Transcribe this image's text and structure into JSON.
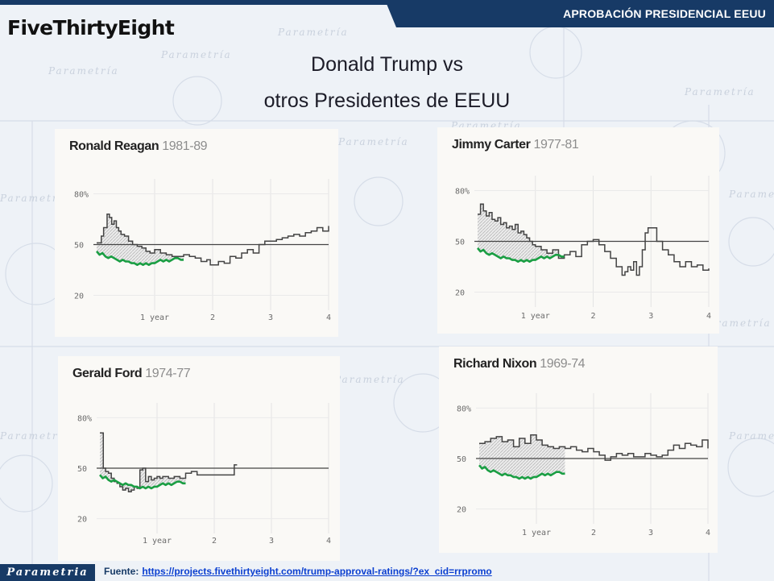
{
  "header": {
    "logo": "FiveThirtyEight",
    "section_title": "APROBACIÓN PRESIDENCIAL EEUU",
    "title_line1": "Donald Trump vs",
    "title_line2": "otros Presidentes de EEUU",
    "watermark": "Parametria"
  },
  "footer": {
    "brand": "Parametria",
    "source_label": "Fuente:",
    "source_url": "https://projects.fivethirtyeight.com/trump-approval-ratings/?ex_cid=rrpromo"
  },
  "colors": {
    "navy": "#173a66",
    "president_line": "#444444",
    "trump_line": "#1a9e43",
    "gap_fill": "#d6d6d6"
  },
  "chart_data": [
    {
      "type": "line",
      "president": "Ronald Reagan",
      "years": "1981-89",
      "ylim": [
        15,
        85
      ],
      "xlim": [
        0,
        4
      ],
      "yticks": [
        "80%",
        "50",
        "20"
      ],
      "ytick_values": [
        80,
        50,
        20
      ],
      "xticks": [
        "1 year",
        "2",
        "3",
        "4"
      ],
      "xtick_values": [
        1,
        2,
        3,
        4
      ],
      "reference": 50,
      "series": [
        {
          "x": [
            0,
            0.08,
            0.12,
            0.18,
            0.22,
            0.26,
            0.3,
            0.34,
            0.38,
            0.42,
            0.48,
            0.55,
            0.62,
            0.7,
            0.78,
            0.85,
            0.92,
            1.0,
            1.1,
            1.2,
            1.3,
            1.4,
            1.5,
            1.6,
            1.7,
            1.8,
            1.9,
            1.96,
            2.02,
            2.1,
            2.2,
            2.3,
            2.4,
            2.5,
            2.6,
            2.7,
            2.8,
            2.9,
            3.0,
            3.1,
            3.2,
            3.3,
            3.4,
            3.5,
            3.6,
            3.7,
            3.8,
            3.9,
            4.0
          ],
          "y": [
            51,
            55,
            60,
            68,
            66,
            62,
            64,
            60,
            58,
            56,
            55,
            52,
            50,
            49,
            48,
            46,
            45,
            47,
            45,
            44,
            43,
            43,
            44,
            43,
            42,
            40,
            41,
            38,
            38,
            40,
            39,
            43,
            42,
            45,
            47,
            45,
            50,
            52,
            52,
            53,
            54,
            55,
            56,
            55,
            57,
            58,
            60,
            58,
            61
          ]
        },
        {
          "x": [
            0,
            0.05,
            0.1,
            0.15,
            0.2,
            0.25,
            0.3,
            0.35,
            0.4,
            0.45,
            0.5,
            0.55,
            0.6,
            0.65,
            0.7,
            0.75,
            0.8,
            0.85,
            0.9,
            0.95,
            1.0,
            1.05,
            1.1,
            1.15,
            1.2,
            1.25,
            1.3,
            1.35,
            1.4,
            1.45,
            1.5
          ],
          "y": [
            46,
            44,
            45,
            43,
            42,
            43,
            42,
            41,
            40,
            41,
            40,
            40,
            39,
            39,
            38,
            39,
            38,
            39,
            38,
            39,
            39,
            40,
            41,
            40,
            41,
            40,
            41,
            42,
            42,
            41,
            41
          ]
        }
      ]
    },
    {
      "type": "line",
      "president": "Jimmy Carter",
      "years": "1977-81",
      "ylim": [
        15,
        85
      ],
      "xlim": [
        0,
        4
      ],
      "yticks": [
        "80%",
        "50",
        "20"
      ],
      "ytick_values": [
        80,
        50,
        20
      ],
      "xticks": [
        "1 year",
        "2",
        "3",
        "4"
      ],
      "xtick_values": [
        1,
        2,
        3,
        4
      ],
      "reference": 50,
      "series": [
        {
          "x": [
            0,
            0.05,
            0.1,
            0.15,
            0.2,
            0.25,
            0.3,
            0.35,
            0.4,
            0.45,
            0.5,
            0.55,
            0.6,
            0.65,
            0.7,
            0.75,
            0.8,
            0.85,
            0.9,
            0.95,
            1.0,
            1.1,
            1.2,
            1.3,
            1.4,
            1.5,
            1.6,
            1.7,
            1.8,
            1.9,
            2.0,
            2.1,
            2.2,
            2.3,
            2.4,
            2.5,
            2.55,
            2.6,
            2.65,
            2.7,
            2.75,
            2.8,
            2.85,
            2.9,
            2.95,
            3.0,
            3.1,
            3.2,
            3.3,
            3.4,
            3.5,
            3.6,
            3.7,
            3.8,
            3.9,
            4.0
          ],
          "y": [
            66,
            72,
            68,
            65,
            67,
            63,
            62,
            64,
            60,
            61,
            58,
            59,
            57,
            60,
            55,
            56,
            54,
            52,
            50,
            48,
            47,
            45,
            43,
            45,
            40,
            42,
            44,
            41,
            48,
            50,
            51,
            48,
            44,
            40,
            35,
            30,
            32,
            35,
            33,
            38,
            30,
            35,
            45,
            55,
            58,
            58,
            50,
            45,
            42,
            38,
            35,
            38,
            35,
            36,
            33,
            34
          ]
        },
        {
          "x": [
            0,
            0.05,
            0.1,
            0.15,
            0.2,
            0.25,
            0.3,
            0.35,
            0.4,
            0.45,
            0.5,
            0.55,
            0.6,
            0.65,
            0.7,
            0.75,
            0.8,
            0.85,
            0.9,
            0.95,
            1.0,
            1.05,
            1.1,
            1.15,
            1.2,
            1.25,
            1.3,
            1.35,
            1.4,
            1.45,
            1.5
          ],
          "y": [
            46,
            44,
            45,
            43,
            42,
            43,
            42,
            41,
            40,
            41,
            40,
            40,
            39,
            39,
            38,
            39,
            38,
            39,
            38,
            39,
            39,
            40,
            41,
            40,
            41,
            40,
            41,
            42,
            42,
            41,
            41
          ]
        }
      ]
    },
    {
      "type": "line",
      "president": "Gerald Ford",
      "years": "1974-77",
      "ylim": [
        15,
        85
      ],
      "xlim": [
        0,
        4
      ],
      "yticks": [
        "80%",
        "50",
        "20"
      ],
      "ytick_values": [
        80,
        50,
        20
      ],
      "xticks": [
        "1 year",
        "2",
        "3",
        "4"
      ],
      "xtick_values": [
        1,
        2,
        3,
        4
      ],
      "reference": 50,
      "series": [
        {
          "x": [
            0,
            0.04,
            0.06,
            0.1,
            0.15,
            0.2,
            0.25,
            0.3,
            0.35,
            0.4,
            0.45,
            0.5,
            0.55,
            0.6,
            0.65,
            0.7,
            0.75,
            0.8,
            0.85,
            0.9,
            0.95,
            1.0,
            1.05,
            1.1,
            1.2,
            1.3,
            1.4,
            1.5,
            1.6,
            1.7,
            1.8,
            1.9,
            2.0,
            2.1,
            2.2,
            2.3,
            2.35,
            2.4
          ],
          "y": [
            71,
            71,
            50,
            48,
            47,
            44,
            42,
            41,
            39,
            37,
            38,
            36,
            37,
            39,
            38,
            49,
            50,
            42,
            45,
            43,
            44,
            45,
            44,
            45,
            44,
            45,
            44,
            47,
            48,
            46,
            46,
            46,
            46,
            46,
            46,
            46,
            52,
            52
          ]
        },
        {
          "x": [
            0,
            0.05,
            0.1,
            0.15,
            0.2,
            0.25,
            0.3,
            0.35,
            0.4,
            0.45,
            0.5,
            0.55,
            0.6,
            0.65,
            0.7,
            0.75,
            0.8,
            0.85,
            0.9,
            0.95,
            1.0,
            1.05,
            1.1,
            1.15,
            1.2,
            1.25,
            1.3,
            1.35,
            1.4,
            1.45,
            1.5
          ],
          "y": [
            46,
            44,
            45,
            43,
            42,
            43,
            42,
            41,
            40,
            41,
            40,
            40,
            39,
            39,
            38,
            39,
            38,
            39,
            38,
            39,
            39,
            40,
            41,
            40,
            41,
            40,
            41,
            42,
            42,
            41,
            41
          ]
        }
      ]
    },
    {
      "type": "line",
      "president": "Richard Nixon",
      "years": "1969-74",
      "ylim": [
        15,
        85
      ],
      "xlim": [
        0,
        4
      ],
      "yticks": [
        "80%",
        "50",
        "20"
      ],
      "ytick_values": [
        80,
        50,
        20
      ],
      "xticks": [
        "1 year",
        "2",
        "3",
        "4"
      ],
      "xtick_values": [
        1,
        2,
        3,
        4
      ],
      "reference": 50,
      "series": [
        {
          "x": [
            0,
            0.1,
            0.2,
            0.3,
            0.4,
            0.5,
            0.6,
            0.7,
            0.8,
            0.9,
            1.0,
            1.1,
            1.2,
            1.3,
            1.4,
            1.5,
            1.6,
            1.7,
            1.8,
            1.9,
            2.0,
            2.1,
            2.2,
            2.3,
            2.4,
            2.5,
            2.6,
            2.7,
            2.8,
            2.9,
            3.0,
            3.1,
            3.2,
            3.3,
            3.4,
            3.5,
            3.6,
            3.7,
            3.8,
            3.9,
            4.0
          ],
          "y": [
            59,
            60,
            62,
            63,
            60,
            61,
            57,
            62,
            59,
            64,
            61,
            58,
            57,
            56,
            57,
            56,
            57,
            55,
            54,
            56,
            54,
            52,
            49,
            51,
            53,
            52,
            53,
            51,
            51,
            53,
            52,
            51,
            52,
            55,
            58,
            56,
            59,
            58,
            57,
            61,
            56
          ]
        },
        {
          "x": [
            0,
            0.05,
            0.1,
            0.15,
            0.2,
            0.25,
            0.3,
            0.35,
            0.4,
            0.45,
            0.5,
            0.55,
            0.6,
            0.65,
            0.7,
            0.75,
            0.8,
            0.85,
            0.9,
            0.95,
            1.0,
            1.05,
            1.1,
            1.15,
            1.2,
            1.25,
            1.3,
            1.35,
            1.4,
            1.45,
            1.5
          ],
          "y": [
            46,
            44,
            45,
            43,
            42,
            43,
            42,
            41,
            40,
            41,
            40,
            40,
            39,
            39,
            38,
            39,
            38,
            39,
            38,
            39,
            39,
            40,
            41,
            40,
            41,
            40,
            41,
            42,
            42,
            41,
            41
          ]
        }
      ]
    }
  ]
}
